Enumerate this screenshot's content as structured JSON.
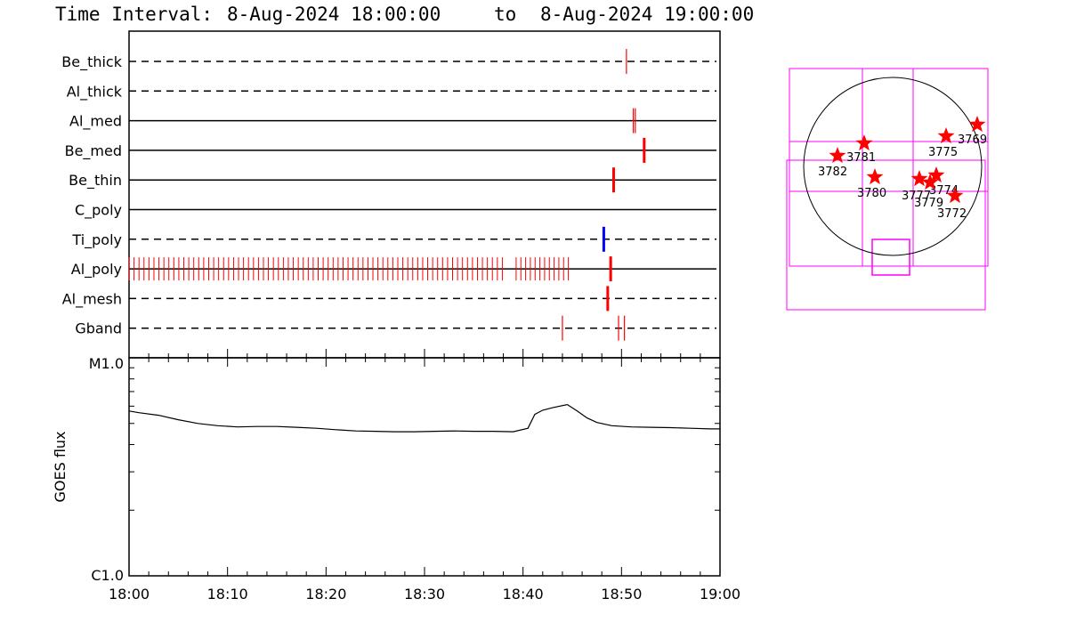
{
  "title": {
    "prefix": "Time Interval:",
    "start": "8-Aug-2024 18:00:00",
    "to": "to",
    "end": "8-Aug-2024 19:00:00"
  },
  "chart_data": [
    {
      "type": "timeline",
      "panel": "filter-timeline",
      "x_unit": "minutes after 18:00",
      "xlim": [
        0,
        60
      ],
      "rows": [
        {
          "name": "Be_thick",
          "line": "dashed",
          "marks": [
            {
              "t": 50.5,
              "color": "#ff0000",
              "thick": false
            }
          ]
        },
        {
          "name": "Al_thick",
          "line": "dashed",
          "marks": []
        },
        {
          "name": "Al_med",
          "line": "solid",
          "marks": [
            {
              "t": 51.2,
              "color": "#ff0000",
              "thick": false
            },
            {
              "t": 51.4,
              "color": "#ff0000",
              "thick": false
            }
          ]
        },
        {
          "name": "Be_med",
          "line": "solid",
          "marks": [
            {
              "t": 52.3,
              "color": "#ff0000",
              "thick": true
            }
          ]
        },
        {
          "name": "Be_thin",
          "line": "solid",
          "marks": [
            {
              "t": 49.2,
              "color": "#ff0000",
              "thick": true
            }
          ]
        },
        {
          "name": "C_poly",
          "line": "solid",
          "marks": []
        },
        {
          "name": "Ti_poly",
          "line": "dashed",
          "marks": [
            {
              "t": 48.2,
              "color": "#0000ff",
              "thick": true
            }
          ]
        },
        {
          "name": "Al_poly",
          "line": "solid",
          "marks_dense": {
            "ranges": [
              [
                0,
                37.9
              ],
              [
                39.3,
                44.6
              ]
            ],
            "count": [
              76,
              12
            ],
            "color": "#ff0000"
          },
          "marks": [
            {
              "t": 48.9,
              "color": "#ff0000",
              "thick": true
            }
          ]
        },
        {
          "name": "Al_mesh",
          "line": "dashed",
          "marks": [
            {
              "t": 48.6,
              "color": "#ff0000",
              "thick": true
            }
          ]
        },
        {
          "name": "Gband",
          "line": "dashed",
          "marks": [
            {
              "t": 44.0,
              "color": "#ff0000",
              "thick": false
            },
            {
              "t": 49.7,
              "color": "#ff0000",
              "thick": false
            },
            {
              "t": 50.3,
              "color": "#ff0000",
              "thick": false
            }
          ]
        }
      ]
    },
    {
      "type": "line",
      "panel": "goes-flux",
      "ylabel": "GOES flux",
      "x_unit": "minutes after 18:00",
      "y_scale": "log",
      "ylim_labels": [
        "C1.0",
        "M1.0"
      ],
      "ylim": [
        1e-06,
        1e-05
      ],
      "xticks": [
        "18:00",
        "18:10",
        "18:20",
        "18:30",
        "18:40",
        "18:50",
        "19:00"
      ],
      "x": [
        0,
        1,
        3,
        5,
        7,
        9,
        11,
        13,
        15,
        17,
        19,
        21,
        23,
        25,
        27,
        29,
        31,
        33,
        35,
        37,
        39,
        40.5,
        41.2,
        42,
        43,
        44.5,
        45.5,
        46.5,
        47.5,
        49,
        51,
        53,
        55,
        57,
        59,
        60
      ],
      "y": [
        5.7e-06,
        5.6e-06,
        5.45e-06,
        5.2e-06,
        5e-06,
        4.88e-06,
        4.82e-06,
        4.84e-06,
        4.84e-06,
        4.8e-06,
        4.75e-06,
        4.68e-06,
        4.62e-06,
        4.6e-06,
        4.58e-06,
        4.58e-06,
        4.6e-06,
        4.62e-06,
        4.6e-06,
        4.6e-06,
        4.58e-06,
        4.75e-06,
        5.5e-06,
        5.75e-06,
        5.9e-06,
        6.1e-06,
        5.7e-06,
        5.3e-06,
        5.05e-06,
        4.88e-06,
        4.82e-06,
        4.8e-06,
        4.78e-06,
        4.75e-06,
        4.72e-06,
        4.72e-06
      ]
    },
    {
      "type": "scatter",
      "panel": "solar-disk",
      "units": "disk radii",
      "xlim": [
        -1,
        1
      ],
      "ylim": [
        -1,
        1
      ],
      "points": [
        {
          "label": "3769",
          "x": 0.95,
          "y": 0.47
        },
        {
          "label": "3775",
          "x": 0.6,
          "y": 0.34
        },
        {
          "label": "3781",
          "x": -0.32,
          "y": 0.26
        },
        {
          "label": "3782",
          "x": -0.62,
          "y": 0.12
        },
        {
          "label": "3780",
          "x": -0.2,
          "y": -0.12
        },
        {
          "label": "3777",
          "x": 0.3,
          "y": -0.14
        },
        {
          "label": "3774",
          "x": 0.49,
          "y": -0.1
        },
        {
          "label": "3779",
          "x": 0.42,
          "y": -0.18
        },
        {
          "label": "3772",
          "x": 0.7,
          "y": -0.33
        }
      ]
    }
  ],
  "styles": {
    "mark_red": "#ff0000",
    "mark_blue": "#0000ff",
    "fov_magenta": "#ff00ff",
    "axis": "#000000",
    "background": "#ffffff"
  }
}
